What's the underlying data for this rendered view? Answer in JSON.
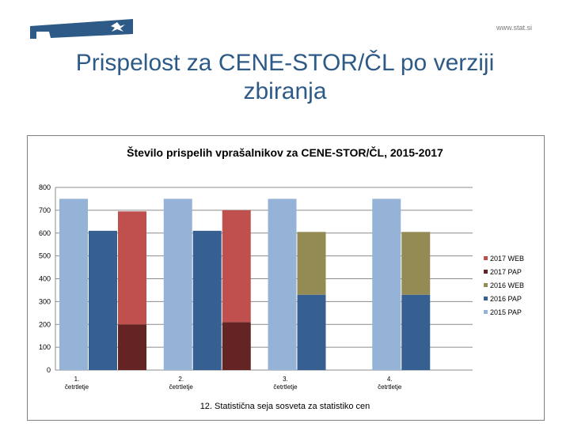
{
  "header": {
    "site_url": "www.stat.si",
    "title": "Prispelost za CENE-STOR/ČL po verziji zbiranja"
  },
  "footer": {
    "text": "12. Statistična seja sosveta za statistiko cen"
  },
  "colors": {
    "title": "#2e5a87",
    "s2015_pap": "#95b3d7",
    "s2016_pap": "#376092",
    "s2016_web": "#948a54",
    "s2017_pap": "#632423",
    "s2017_web": "#c0504d"
  },
  "chart_data": {
    "type": "bar",
    "title": "Število prispelih vprašalnikov za CENE-STOR/ČL, 2015-2017",
    "categories": [
      "1. četrtletje",
      "2. četrtletje",
      "3. četrtletje",
      "4. četrtletje"
    ],
    "ylim": [
      0,
      800
    ],
    "yticks": [
      "0",
      "100",
      "200",
      "300",
      "400",
      "500",
      "600",
      "700",
      "800"
    ],
    "grid": true,
    "legend_position": "right",
    "groups": [
      {
        "name": "2015",
        "stacks": [
          {
            "series": "2015 PAP",
            "values": [
              750,
              750,
              750,
              750
            ]
          }
        ]
      },
      {
        "name": "2016",
        "stacks": [
          {
            "series": "2016 PAP",
            "values": [
              610,
              610,
              330,
              330
            ]
          },
          {
            "series": "2016 WEB",
            "values": [
              0,
              0,
              275,
              275
            ]
          }
        ]
      },
      {
        "name": "2017",
        "stacks": [
          {
            "series": "2017 PAP",
            "values": [
              200,
              210,
              null,
              null
            ]
          },
          {
            "series": "2017 WEB",
            "values": [
              495,
              490,
              null,
              null
            ]
          }
        ]
      }
    ],
    "legend": [
      "2017 WEB",
      "2017 PAP",
      "2016 WEB",
      "2016 PAP",
      "2015 PAP"
    ]
  }
}
